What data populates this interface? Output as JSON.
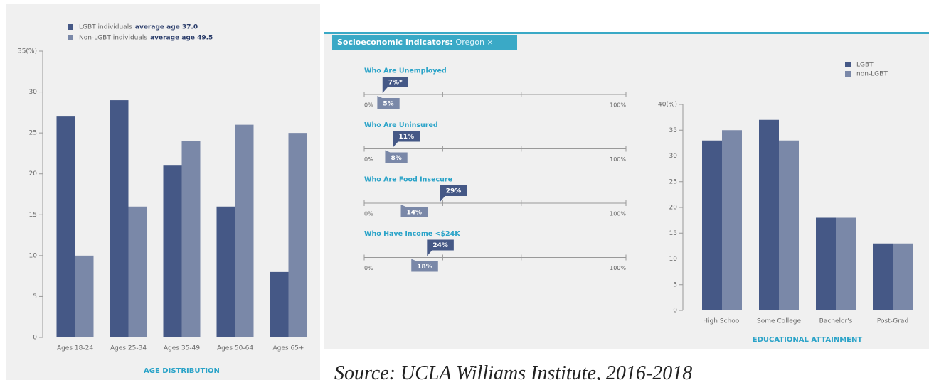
{
  "chart_data": [
    {
      "type": "bar",
      "xlabel": "AGE DISTRIBUTION",
      "categories": [
        "Ages 18-24",
        "Ages 25-34",
        "Ages 35-49",
        "Ages 50-64",
        "Ages 65+"
      ],
      "series": [
        {
          "name": "LGBT individuals",
          "note": "average age 37.0",
          "color": "#455886",
          "values": [
            27,
            29,
            21,
            16,
            8
          ]
        },
        {
          "name": "Non-LGBT individuals",
          "note": "average age 49.5",
          "color": "#7a88a8",
          "values": [
            10,
            16,
            24,
            26,
            25
          ]
        }
      ],
      "ylim": [
        0,
        35
      ],
      "yticks": [
        0,
        5,
        10,
        15,
        20,
        25,
        30,
        {
          "value": 35,
          "label": "35(%)"
        }
      ]
    },
    {
      "type": "indicator",
      "title": "Socioeconomic Indicators:",
      "subtitle": "Oregon ×",
      "colors": [
        "#455886",
        "#7a88a8"
      ],
      "rows": [
        {
          "label": "Who Are Unemployed",
          "values": [
            7,
            5
          ],
          "value_labels": [
            "7%*",
            "5%"
          ]
        },
        {
          "label": "Who Are Uninsured",
          "values": [
            11,
            8
          ],
          "value_labels": [
            "11%",
            "8%"
          ]
        },
        {
          "label": "Who Are Food Insecure",
          "values": [
            29,
            14
          ],
          "value_labels": [
            "29%",
            "14%"
          ]
        },
        {
          "label": "Who Have Income <$24K",
          "values": [
            24,
            18
          ],
          "value_labels": [
            "24%",
            "18%"
          ]
        }
      ],
      "xlim": [
        0,
        100
      ],
      "xticks": [
        {
          "value": 0,
          "label": "0%"
        },
        {
          "value": 100,
          "label": "100%"
        }
      ],
      "minor_xticks": [
        30,
        60
      ]
    },
    {
      "type": "bar",
      "xlabel": "EDUCATIONAL ATTAINMENT",
      "categories": [
        "High School",
        "Some College",
        "Bachelor's",
        "Post-Grad"
      ],
      "series": [
        {
          "name": "LGBT",
          "color": "#455886",
          "values": [
            33,
            37,
            18,
            13
          ]
        },
        {
          "name": "non-LGBT",
          "color": "#7a88a8",
          "values": [
            35,
            33,
            18,
            13
          ]
        }
      ],
      "ylim": [
        0,
        40
      ],
      "yticks": [
        0,
        5,
        10,
        15,
        20,
        25,
        30,
        35,
        {
          "value": 40,
          "label": "40(%)"
        }
      ]
    }
  ],
  "source": "Source: UCLA Williams Institute, 2016-2018"
}
